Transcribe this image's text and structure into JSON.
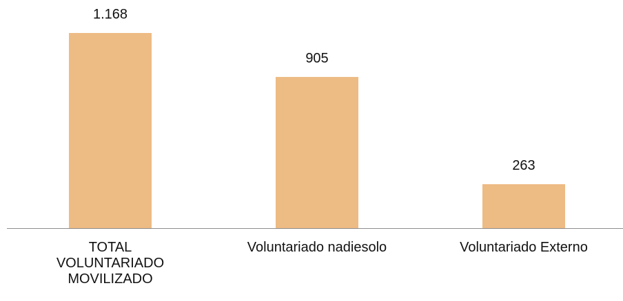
{
  "chart_data": {
    "type": "bar",
    "categories": [
      "TOTAL VOLUNTARIADO MOVILIZADO",
      "Voluntariado nadiesolo",
      "Voluntariado Externo"
    ],
    "values": [
      1168,
      905,
      263
    ],
    "value_labels": [
      "1.168",
      "905",
      "263"
    ],
    "color": "#edbb84"
  }
}
